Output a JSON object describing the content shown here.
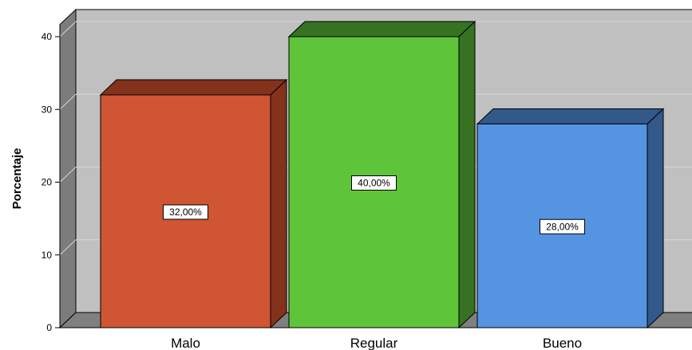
{
  "chart_data": {
    "type": "bar",
    "categories": [
      "Malo",
      "Regular",
      "Bueno"
    ],
    "values": [
      32,
      40,
      28
    ],
    "data_labels": [
      "32,00%",
      "40,00%",
      "28,00%"
    ],
    "title": "",
    "xlabel": "",
    "ylabel": "Porcentaje",
    "ylim": [
      0,
      42
    ],
    "yticks": [
      0,
      10,
      20,
      30,
      40
    ],
    "ytick_labels": [
      "0",
      "10",
      "20",
      "30",
      "40"
    ],
    "grid": true,
    "style": "3d",
    "colors": {
      "bars": [
        "#d05533",
        "#5ec43a",
        "#5594e1"
      ],
      "bar_sides": [
        "#84321c",
        "#357222",
        "#33588a"
      ],
      "wall": "#c0c0c0",
      "side_wall": "#7c7c7c",
      "floor": "#808080",
      "grid": "#d6d6d6"
    }
  }
}
